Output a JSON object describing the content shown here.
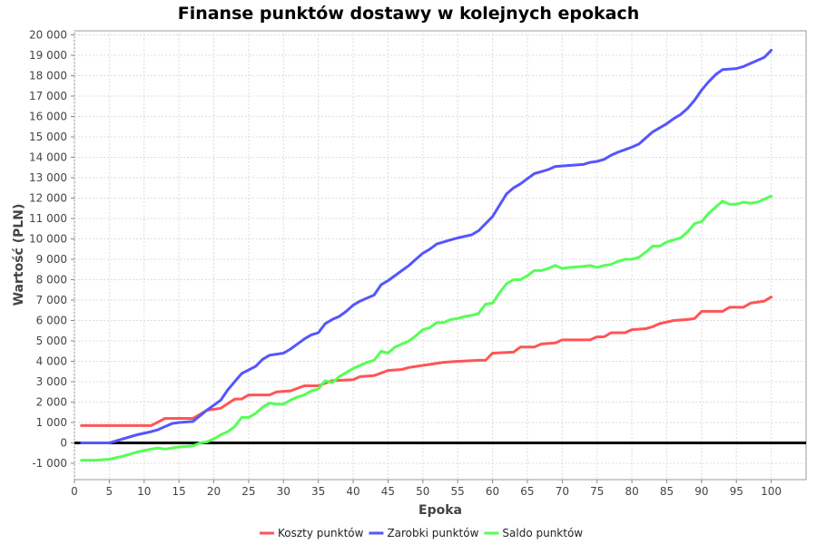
{
  "chart_data": {
    "type": "line",
    "title": "Finanse punktów dostawy w kolejnych epokach",
    "xlabel": "Epoka",
    "ylabel": "Wartość (PLN)",
    "xlim": [
      0,
      105
    ],
    "ylim": [
      -1800,
      20200
    ],
    "x_ticks": [
      0,
      5,
      10,
      15,
      20,
      25,
      30,
      35,
      40,
      45,
      50,
      55,
      60,
      65,
      70,
      75,
      80,
      85,
      90,
      95,
      100
    ],
    "y_ticks": [
      -1000,
      0,
      1000,
      2000,
      3000,
      4000,
      5000,
      6000,
      7000,
      8000,
      9000,
      10000,
      11000,
      12000,
      13000,
      14000,
      15000,
      16000,
      17000,
      18000,
      19000,
      20000
    ],
    "y_tick_labels": [
      "-1 000",
      "0",
      "1 000",
      "2 000",
      "3 000",
      "4 000",
      "5 000",
      "6 000",
      "7 000",
      "8 000",
      "9 000",
      "10 000",
      "11 000",
      "12 000",
      "13 000",
      "14 000",
      "15 000",
      "16 000",
      "17 000",
      "18 000",
      "19 000",
      "20 000"
    ],
    "grid": true,
    "zero_line": true,
    "legend_position": "bottom",
    "series": [
      {
        "name": "Koszty punktów",
        "color": "#ff5555",
        "points": [
          [
            1,
            850
          ],
          [
            5,
            850
          ],
          [
            11,
            850
          ],
          [
            13,
            1200
          ],
          [
            17,
            1200
          ],
          [
            19,
            1600
          ],
          [
            21,
            1700
          ],
          [
            23,
            2150
          ],
          [
            24,
            2150
          ],
          [
            25,
            2350
          ],
          [
            28,
            2350
          ],
          [
            29,
            2500
          ],
          [
            31,
            2550
          ],
          [
            33,
            2800
          ],
          [
            35,
            2800
          ],
          [
            37,
            3050
          ],
          [
            40,
            3100
          ],
          [
            41,
            3250
          ],
          [
            43,
            3300
          ],
          [
            45,
            3550
          ],
          [
            47,
            3600
          ],
          [
            48,
            3700
          ],
          [
            50,
            3800
          ],
          [
            51,
            3850
          ],
          [
            53,
            3950
          ],
          [
            55,
            4000
          ],
          [
            58,
            4050
          ],
          [
            59,
            4050
          ],
          [
            60,
            4400
          ],
          [
            63,
            4450
          ],
          [
            64,
            4700
          ],
          [
            66,
            4700
          ],
          [
            67,
            4850
          ],
          [
            69,
            4900
          ],
          [
            70,
            5050
          ],
          [
            74,
            5050
          ],
          [
            75,
            5200
          ],
          [
            76,
            5200
          ],
          [
            77,
            5400
          ],
          [
            79,
            5400
          ],
          [
            80,
            5550
          ],
          [
            82,
            5600
          ],
          [
            83,
            5700
          ],
          [
            84,
            5850
          ],
          [
            86,
            6000
          ],
          [
            88,
            6050
          ],
          [
            89,
            6100
          ],
          [
            90,
            6450
          ],
          [
            93,
            6450
          ],
          [
            94,
            6650
          ],
          [
            96,
            6650
          ],
          [
            97,
            6850
          ],
          [
            99,
            6950
          ],
          [
            100,
            7150
          ]
        ]
      },
      {
        "name": "Zarobki punktów",
        "color": "#5555ff",
        "points": [
          [
            1,
            0
          ],
          [
            5,
            0
          ],
          [
            7,
            200
          ],
          [
            9,
            400
          ],
          [
            11,
            550
          ],
          [
            12,
            650
          ],
          [
            14,
            950
          ],
          [
            15,
            1000
          ],
          [
            17,
            1050
          ],
          [
            19,
            1600
          ],
          [
            21,
            2100
          ],
          [
            22,
            2600
          ],
          [
            24,
            3400
          ],
          [
            26,
            3750
          ],
          [
            27,
            4100
          ],
          [
            28,
            4300
          ],
          [
            30,
            4400
          ],
          [
            31,
            4600
          ],
          [
            32,
            4850
          ],
          [
            33,
            5100
          ],
          [
            34,
            5300
          ],
          [
            35,
            5400
          ],
          [
            36,
            5850
          ],
          [
            37,
            6050
          ],
          [
            38,
            6200
          ],
          [
            39,
            6450
          ],
          [
            40,
            6750
          ],
          [
            41,
            6950
          ],
          [
            43,
            7250
          ],
          [
            44,
            7750
          ],
          [
            45,
            7950
          ],
          [
            46,
            8200
          ],
          [
            47,
            8450
          ],
          [
            48,
            8700
          ],
          [
            49,
            9000
          ],
          [
            50,
            9300
          ],
          [
            51,
            9500
          ],
          [
            52,
            9750
          ],
          [
            54,
            9950
          ],
          [
            55,
            10050
          ],
          [
            57,
            10200
          ],
          [
            58,
            10400
          ],
          [
            60,
            11100
          ],
          [
            62,
            12200
          ],
          [
            63,
            12500
          ],
          [
            64,
            12700
          ],
          [
            65,
            12950
          ],
          [
            66,
            13200
          ],
          [
            67,
            13300
          ],
          [
            68,
            13400
          ],
          [
            69,
            13550
          ],
          [
            71,
            13600
          ],
          [
            73,
            13650
          ],
          [
            74,
            13750
          ],
          [
            75,
            13800
          ],
          [
            76,
            13900
          ],
          [
            77,
            14100
          ],
          [
            78,
            14250
          ],
          [
            80,
            14500
          ],
          [
            81,
            14650
          ],
          [
            82,
            14950
          ],
          [
            83,
            15250
          ],
          [
            84,
            15450
          ],
          [
            85,
            15650
          ],
          [
            86,
            15900
          ],
          [
            87,
            16100
          ],
          [
            88,
            16400
          ],
          [
            89,
            16800
          ],
          [
            90,
            17300
          ],
          [
            91,
            17700
          ],
          [
            92,
            18050
          ],
          [
            93,
            18300
          ],
          [
            95,
            18350
          ],
          [
            96,
            18450
          ],
          [
            97,
            18600
          ],
          [
            98,
            18750
          ],
          [
            99,
            18900
          ],
          [
            100,
            19250
          ]
        ]
      },
      {
        "name": "Saldo punktów",
        "color": "#55ff55",
        "points": [
          [
            1,
            -850
          ],
          [
            3,
            -850
          ],
          [
            5,
            -800
          ],
          [
            7,
            -650
          ],
          [
            9,
            -450
          ],
          [
            11,
            -300
          ],
          [
            12,
            -250
          ],
          [
            13,
            -300
          ],
          [
            15,
            -200
          ],
          [
            17,
            -150
          ],
          [
            18,
            0
          ],
          [
            19,
            50
          ],
          [
            20,
            200
          ],
          [
            21,
            400
          ],
          [
            22,
            550
          ],
          [
            23,
            800
          ],
          [
            24,
            1250
          ],
          [
            25,
            1250
          ],
          [
            26,
            1450
          ],
          [
            27,
            1750
          ],
          [
            28,
            1950
          ],
          [
            29,
            1900
          ],
          [
            30,
            1900
          ],
          [
            31,
            2100
          ],
          [
            32,
            2250
          ],
          [
            33,
            2350
          ],
          [
            34,
            2550
          ],
          [
            35,
            2650
          ],
          [
            36,
            3050
          ],
          [
            37,
            2950
          ],
          [
            38,
            3250
          ],
          [
            39,
            3450
          ],
          [
            40,
            3650
          ],
          [
            41,
            3800
          ],
          [
            42,
            3950
          ],
          [
            43,
            4050
          ],
          [
            44,
            4500
          ],
          [
            45,
            4400
          ],
          [
            46,
            4700
          ],
          [
            47,
            4850
          ],
          [
            48,
            5000
          ],
          [
            49,
            5250
          ],
          [
            50,
            5550
          ],
          [
            51,
            5650
          ],
          [
            52,
            5900
          ],
          [
            53,
            5900
          ],
          [
            54,
            6050
          ],
          [
            55,
            6100
          ],
          [
            56,
            6200
          ],
          [
            57,
            6250
          ],
          [
            58,
            6350
          ],
          [
            59,
            6800
          ],
          [
            60,
            6850
          ],
          [
            61,
            7350
          ],
          [
            62,
            7800
          ],
          [
            63,
            8000
          ],
          [
            64,
            8000
          ],
          [
            65,
            8200
          ],
          [
            66,
            8450
          ],
          [
            67,
            8450
          ],
          [
            68,
            8550
          ],
          [
            69,
            8700
          ],
          [
            70,
            8550
          ],
          [
            71,
            8600
          ],
          [
            73,
            8650
          ],
          [
            74,
            8700
          ],
          [
            75,
            8600
          ],
          [
            76,
            8700
          ],
          [
            77,
            8750
          ],
          [
            78,
            8900
          ],
          [
            79,
            9000
          ],
          [
            80,
            9000
          ],
          [
            81,
            9100
          ],
          [
            82,
            9350
          ],
          [
            83,
            9650
          ],
          [
            84,
            9650
          ],
          [
            85,
            9850
          ],
          [
            86,
            9950
          ],
          [
            87,
            10050
          ],
          [
            88,
            10350
          ],
          [
            89,
            10750
          ],
          [
            90,
            10850
          ],
          [
            91,
            11250
          ],
          [
            92,
            11550
          ],
          [
            93,
            11850
          ],
          [
            94,
            11700
          ],
          [
            95,
            11700
          ],
          [
            96,
            11800
          ],
          [
            97,
            11750
          ],
          [
            98,
            11800
          ],
          [
            99,
            11950
          ],
          [
            100,
            12100
          ]
        ]
      }
    ]
  }
}
